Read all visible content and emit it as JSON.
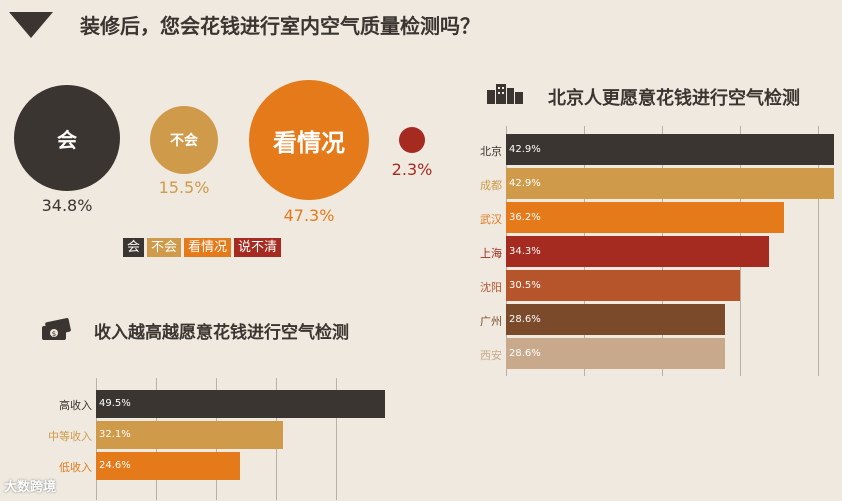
{
  "header": {
    "title": "装修后，您会花钱进行室内空气质量检测吗？"
  },
  "legend": [
    {
      "label": "会",
      "color": "#3b3531"
    },
    {
      "label": "不会",
      "color": "#cf9a4a"
    },
    {
      "label": "看情况",
      "color": "#e57a1a"
    },
    {
      "label": "说不清",
      "color": "#a52a1f"
    }
  ],
  "bubbles": [
    {
      "label": "会",
      "value": 34.8,
      "text": "34.8%"
    },
    {
      "label": "不会",
      "value": 15.5,
      "text": "15.5%"
    },
    {
      "label": "看情况",
      "value": 47.3,
      "text": "47.3%"
    },
    {
      "label": "",
      "value": 2.3,
      "text": "2.3%"
    }
  ],
  "income_section": {
    "title": "收入越高越愿意花钱进行空气检测",
    "icon": "money-icon"
  },
  "city_section": {
    "title": "北京人更愿意花钱进行空气检测",
    "icon": "city-icon"
  },
  "watermark": "大数跨境",
  "chart_data": [
    {
      "type": "pie",
      "title": "装修后，您会花钱进行室内空气质量检测吗？",
      "categories": [
        "会",
        "不会",
        "看情况",
        "说不清"
      ],
      "values": [
        34.8,
        15.5,
        47.3,
        2.3
      ],
      "colors": [
        "#3b3531",
        "#cf9a4a",
        "#e57a1a",
        "#a52a1f"
      ]
    },
    {
      "type": "bar",
      "orientation": "horizontal",
      "title": "收入越高越愿意花钱进行空气检测",
      "categories": [
        "高收入",
        "中等收入",
        "低收入"
      ],
      "values": [
        49.5,
        32.1,
        24.6
      ],
      "value_labels": [
        "49.5%",
        "32.1%",
        "24.6%"
      ],
      "colors": [
        "#3b3531",
        "#cf9a4a",
        "#e57a1a"
      ],
      "label_colors": [
        "#3b3531",
        "#cf9a4a",
        "#e57a1a"
      ],
      "xlim": [
        0,
        60
      ]
    },
    {
      "type": "bar",
      "orientation": "horizontal",
      "title": "北京人更愿意花钱进行空气检测",
      "categories": [
        "北京",
        "成都",
        "武汉",
        "上海",
        "沈阳",
        "广州",
        "西安"
      ],
      "values": [
        42.9,
        42.9,
        36.2,
        34.3,
        30.5,
        28.6,
        28.6
      ],
      "value_labels": [
        "42.9%",
        "42.9%",
        "36.2%",
        "34.3%",
        "30.5%",
        "28.6%",
        "28.6%"
      ],
      "colors": [
        "#3b3531",
        "#cf9a4a",
        "#e57a1a",
        "#a52a1f",
        "#b6552c",
        "#7b4a2a",
        "#c8a98c"
      ],
      "label_colors": [
        "#3b3531",
        "#cf9a4a",
        "#e57a1a",
        "#a52a1f",
        "#b6552c",
        "#7b4a2a",
        "#c8a98c"
      ],
      "xlim": [
        0,
        45
      ]
    }
  ]
}
